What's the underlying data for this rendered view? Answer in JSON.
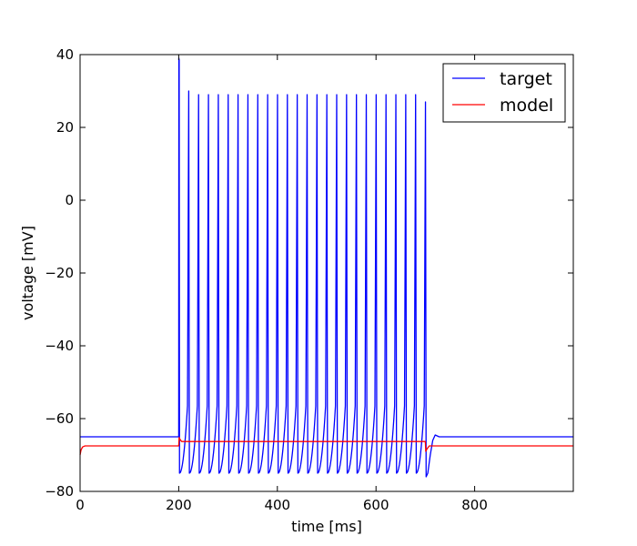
{
  "chart_data": {
    "type": "line",
    "title": "",
    "xlabel": "time [ms]",
    "ylabel": "voltage [mV]",
    "xlim": [
      0,
      1000
    ],
    "ylim": [
      -80,
      40
    ],
    "xticks": [
      0,
      200,
      400,
      600,
      800
    ],
    "yticks": [
      -80,
      -60,
      -40,
      -20,
      0,
      20,
      40
    ],
    "grid": false,
    "legend": {
      "position": "top-right",
      "entries": [
        "target",
        "model"
      ]
    },
    "series": [
      {
        "name": "target",
        "color": "#0000ff",
        "resting_mV": -65,
        "stimulus_ms": [
          200,
          700
        ],
        "spike_times_ms": [
          200,
          220,
          240,
          260,
          280,
          300,
          320,
          340,
          360,
          380,
          400,
          420,
          440,
          460,
          480,
          500,
          520,
          540,
          560,
          580,
          600,
          620,
          640,
          660,
          680,
          700
        ],
        "spike_peaks_mV": [
          39,
          30,
          29,
          29,
          29,
          29,
          29,
          29,
          29,
          29,
          29,
          29,
          29,
          29,
          29,
          29,
          29,
          29,
          29,
          29,
          29,
          29,
          29,
          29,
          29,
          27
        ],
        "trough_mV": -75,
        "final_trough_mV": -76,
        "rebound_peak_mV": -64.5
      },
      {
        "name": "model",
        "color": "#ff0000",
        "initial_mV": -70,
        "resting_mV": -67.5,
        "stimulus_mV": -66.3,
        "stimulus_ms": [
          200,
          700
        ],
        "onset_peak_mV": -65.2,
        "offset_dip_mV": -69
      }
    ]
  }
}
